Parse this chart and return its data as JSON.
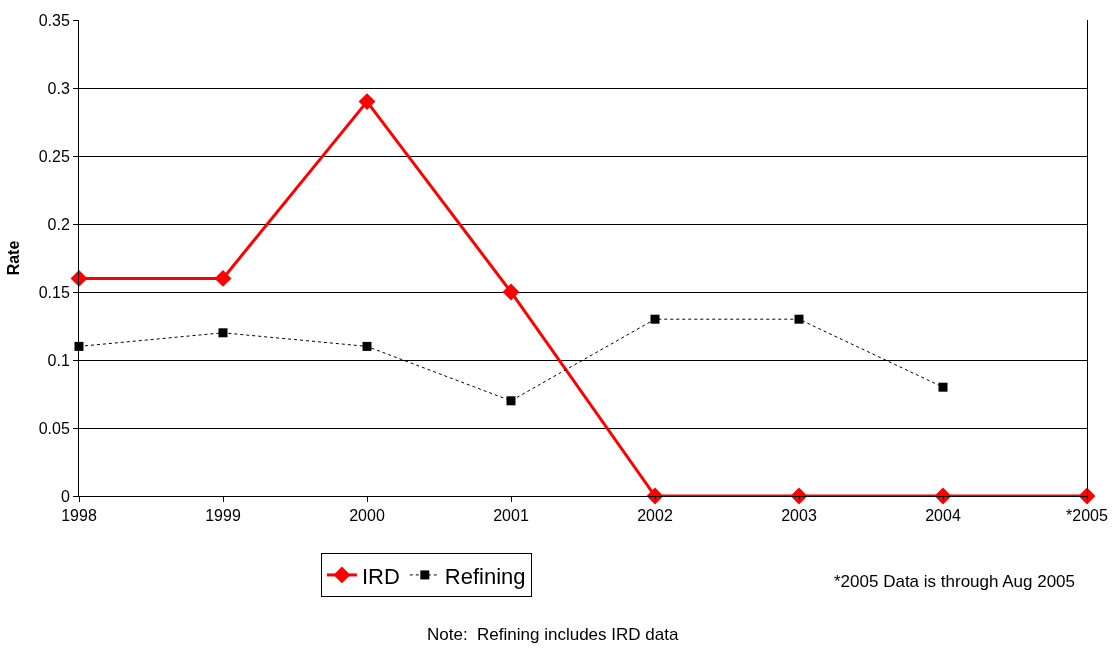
{
  "chart_data": {
    "type": "line",
    "ylabel": "Rate",
    "categories": [
      "1998",
      "1999",
      "2000",
      "2001",
      "2002",
      "2003",
      "2004",
      "*2005"
    ],
    "series": [
      {
        "name": "IRD",
        "color": "#ff0000",
        "values": [
          0.16,
          0.16,
          0.29,
          0.15,
          0,
          0,
          0,
          0
        ],
        "marker": "diamond",
        "line_style": "solid"
      },
      {
        "name": "Refining",
        "color": "#000000",
        "values": [
          0.11,
          0.12,
          0.11,
          0.07,
          0.13,
          0.13,
          0.08,
          null
        ],
        "marker": "square",
        "line_style": "dotted"
      }
    ],
    "ylim": [
      0,
      0.35
    ],
    "yticks": [
      0,
      0.05,
      0.1,
      0.15,
      0.2,
      0.25,
      0.3,
      0.35
    ],
    "grid": "y",
    "legend": "bottom",
    "annotations": [
      "*2005 Data is through Aug 2005",
      "Note:  Refining includes IRD data"
    ]
  }
}
